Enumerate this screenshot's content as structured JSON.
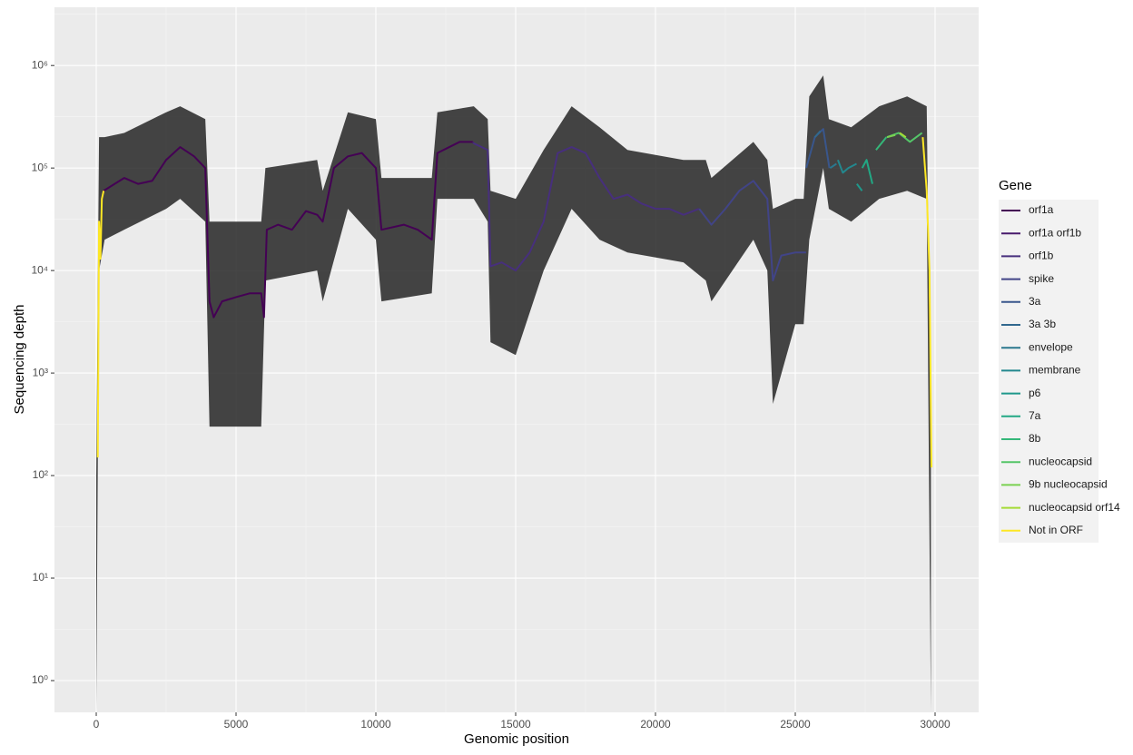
{
  "chart_data": {
    "type": "line",
    "x_label": "Genomic position",
    "y_label": "Sequencing depth",
    "log_y": true,
    "grid": true,
    "xlim": [
      -1494,
      31558
    ],
    "ylim": [
      0.49,
      3700000
    ],
    "xticks": [
      0,
      5000,
      10000,
      15000,
      20000,
      25000,
      30000
    ],
    "yticks": [
      {
        "value": 1,
        "label": "10⁰"
      },
      {
        "value": 10,
        "label": "10¹"
      },
      {
        "value": 100,
        "label": "10²"
      },
      {
        "value": 1000,
        "label": "10³"
      },
      {
        "value": 10000,
        "label": "10⁴"
      },
      {
        "value": 100000,
        "label": "10⁵"
      },
      {
        "value": 1000000,
        "label": "10⁶"
      }
    ],
    "legend_title": "Gene",
    "legend_position": "right",
    "band": {
      "color": "#262626",
      "x": [
        0,
        100,
        300,
        1000,
        2500,
        3000,
        3900,
        4050,
        5900,
        6050,
        7900,
        8100,
        9000,
        10000,
        10200,
        12000,
        12200,
        13500,
        14000,
        14100,
        15000,
        16000,
        17000,
        18000,
        19000,
        21000,
        21800,
        22000,
        23500,
        24000,
        24200,
        25000,
        25300,
        25500,
        26000,
        26200,
        27000,
        28000,
        29000,
        29700,
        29850
      ],
      "upper": [
        100,
        200000,
        200000,
        220000,
        350000,
        400000,
        300000,
        30000,
        30000,
        100000,
        120000,
        60000,
        350000,
        300000,
        80000,
        80000,
        350000,
        400000,
        300000,
        60000,
        50000,
        150000,
        400000,
        250000,
        150000,
        120000,
        120000,
        80000,
        180000,
        120000,
        40000,
        50000,
        50000,
        500000,
        800000,
        300000,
        250000,
        400000,
        500000,
        400000,
        200
      ],
      "lower": [
        0.5,
        10000,
        20000,
        25000,
        40000,
        50000,
        30000,
        300,
        300,
        8000,
        10000,
        5000,
        40000,
        20000,
        5000,
        6000,
        50000,
        50000,
        30000,
        2000,
        1500,
        10000,
        40000,
        20000,
        15000,
        12000,
        8000,
        5000,
        20000,
        10000,
        500,
        3000,
        3000,
        20000,
        100000,
        40000,
        30000,
        50000,
        60000,
        50000,
        0.5
      ]
    },
    "series": [
      {
        "name": "orf1a",
        "color": "#440154",
        "x": [
          266,
          1000,
          1500,
          2000,
          2500,
          3000,
          3500,
          3900,
          4050,
          4200,
          4500,
          5000,
          5500,
          5900,
          6000,
          6100,
          6500,
          7000,
          7500,
          7900,
          8100,
          8500,
          9000,
          9500,
          10000,
          10200,
          11000,
          11500,
          12000,
          12200,
          13000,
          13468
        ],
        "values": [
          60000,
          80000,
          70000,
          75000,
          120000,
          160000,
          130000,
          100000,
          5000,
          3500,
          5000,
          5500,
          6000,
          6000,
          3500,
          25000,
          28000,
          25000,
          38000,
          35000,
          30000,
          100000,
          130000,
          140000,
          100000,
          25000,
          28000,
          25000,
          20000,
          140000,
          180000,
          180000
        ]
      },
      {
        "name": "orf1a orf1b",
        "color": "#481a6c",
        "x": [
          13468,
          13483
        ],
        "values": [
          180000,
          175000
        ]
      },
      {
        "name": "orf1b",
        "color": "#472f7d",
        "x": [
          13483,
          14000,
          14100,
          14500,
          15000,
          15500,
          16000,
          16500,
          17000,
          17500,
          18000,
          18500,
          19000,
          19500,
          20000,
          20500,
          21000,
          21555
        ],
        "values": [
          175000,
          150000,
          11000,
          12000,
          10000,
          15000,
          30000,
          140000,
          160000,
          140000,
          80000,
          50000,
          55000,
          45000,
          40000,
          40000,
          35000,
          40000
        ]
      },
      {
        "name": "spike",
        "color": "#414487",
        "x": [
          21563,
          22000,
          22500,
          23000,
          23500,
          24000,
          24200,
          24500,
          25000,
          25384
        ],
        "values": [
          40000,
          28000,
          40000,
          60000,
          75000,
          50000,
          8000,
          14000,
          15000,
          15000
        ]
      },
      {
        "name": "3a",
        "color": "#39568c",
        "x": [
          25393,
          25700,
          26000,
          26220
        ],
        "values": [
          100000,
          200000,
          240000,
          100000
        ]
      },
      {
        "name": "3a 3b",
        "color": "#31688e",
        "x": [
          25700,
          25900
        ],
        "values": [
          200000,
          230000
        ]
      },
      {
        "name": "envelope",
        "color": "#2a788e",
        "x": [
          26245,
          26472
        ],
        "values": [
          100000,
          110000
        ]
      },
      {
        "name": "membrane",
        "color": "#23888e",
        "x": [
          26523,
          26700,
          26900,
          27191
        ],
        "values": [
          120000,
          90000,
          100000,
          110000
        ]
      },
      {
        "name": "p6",
        "color": "#1f988b",
        "x": [
          27202,
          27387
        ],
        "values": [
          70000,
          60000
        ]
      },
      {
        "name": "7a",
        "color": "#22a884",
        "x": [
          27394,
          27550,
          27759
        ],
        "values": [
          100000,
          120000,
          70000
        ]
      },
      {
        "name": "8b",
        "color": "#35b779",
        "x": [
          27887,
          28259
        ],
        "values": [
          150000,
          200000
        ]
      },
      {
        "name": "nucleocapsid",
        "color": "#54c568",
        "x": [
          28274,
          28700,
          29100,
          29533
        ],
        "values": [
          200000,
          220000,
          180000,
          220000
        ]
      },
      {
        "name": "9b nucleocapsid",
        "color": "#7ad151",
        "x": [
          28284,
          28577
        ],
        "values": [
          200000,
          210000
        ]
      },
      {
        "name": "nucleocapsid orf14",
        "color": "#a5db36",
        "x": [
          28734,
          28955
        ],
        "values": [
          220000,
          200000
        ]
      },
      {
        "name": "Not in ORF",
        "color": "#fde725",
        "x": [
          55,
          100,
          150,
          200,
          265,
          null,
          29558,
          29700,
          29800,
          29870
        ],
        "values": [
          150,
          30000,
          13000,
          50000,
          60000,
          null,
          200000,
          60000,
          10000,
          120
        ]
      }
    ]
  }
}
